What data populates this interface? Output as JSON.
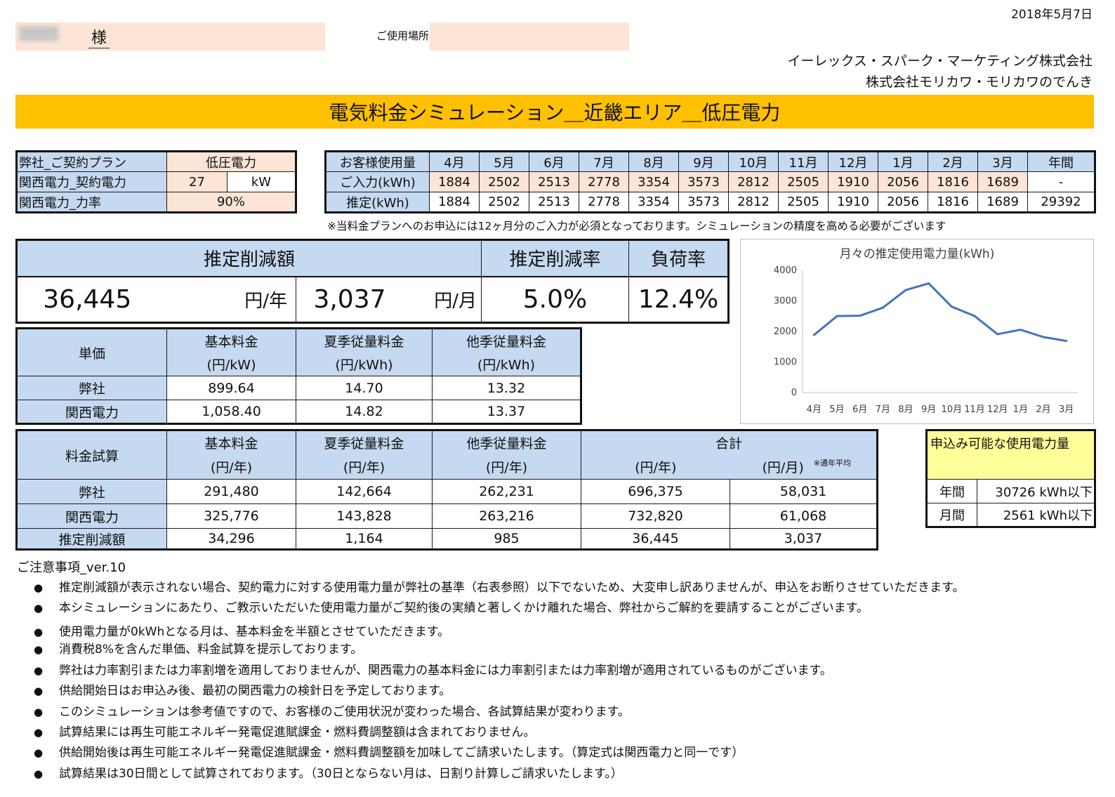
{
  "date": "2018年5月7日",
  "customer": {
    "name_redacted": "████",
    "suffix": "様"
  },
  "usage_place_label": "ご使用場所",
  "company": {
    "line1": "イーレックス・スパーク・マーケティング株式会社",
    "line2": "株式会社モリカワ・モリカワのでんき"
  },
  "title": "電気料金シミュレーション＿近畿エリア＿低圧電力",
  "plan_table": {
    "rows": [
      {
        "label": "弊社_ご契約プラン",
        "value": "低圧電力"
      },
      {
        "label": "関西電力_契約電力",
        "value": "27",
        "unit": "kW"
      },
      {
        "label": "関西電力_力率",
        "value": "90%"
      }
    ]
  },
  "usage_table": {
    "header_label": "お客様使用量",
    "months": [
      "4月",
      "5月",
      "6月",
      "7月",
      "8月",
      "9月",
      "10月",
      "11月",
      "12月",
      "1月",
      "2月",
      "3月"
    ],
    "annual_label": "年間",
    "input_label": "ご入力(kWh)",
    "input_values": [
      "1884",
      "2502",
      "2513",
      "2778",
      "3354",
      "3573",
      "2812",
      "2505",
      "1910",
      "2056",
      "1816",
      "1689"
    ],
    "input_annual": "-",
    "est_label": "推定(kWh)",
    "est_values": [
      "1884",
      "2502",
      "2513",
      "2778",
      "3354",
      "3573",
      "2812",
      "2505",
      "1910",
      "2056",
      "1816",
      "1689"
    ],
    "est_annual": "29392",
    "note": "※当料金プランへのお申込には12ヶ月分のご入力が必須となっております。シミュレーションの精度を高める必要がございます"
  },
  "savings": {
    "label_amount": "推定削減額",
    "label_rate": "推定削減率",
    "label_load": "負荷率",
    "yearly": "36,445",
    "yearly_unit": "円/年",
    "monthly": "3,037",
    "monthly_unit": "円/月",
    "rate": "5.0%",
    "load": "12.4%"
  },
  "unit_price": {
    "corner": "単価",
    "headers": [
      {
        "l1": "基本料金",
        "l2": "(円/kW)"
      },
      {
        "l1": "夏季従量料金",
        "l2": "(円/kWh)"
      },
      {
        "l1": "他季従量料金",
        "l2": "(円/kWh)"
      }
    ],
    "rows": [
      {
        "label": "弊社",
        "values": [
          "899.64",
          "14.70",
          "13.32"
        ]
      },
      {
        "label": "関西電力",
        "values": [
          "1,058.40",
          "14.82",
          "13.37"
        ]
      }
    ]
  },
  "fee_calc": {
    "corner": "料金試算",
    "headers": [
      {
        "l1": "基本料金",
        "l2": "(円/年)"
      },
      {
        "l1": "夏季従量料金",
        "l2": "(円/年)"
      },
      {
        "l1": "他季従量料金",
        "l2": "(円/年)"
      }
    ],
    "total_label": "合計",
    "total_year_unit": "(円/年)",
    "total_month_unit": "(円/月)",
    "avg_note": "※通年平均",
    "rows": [
      {
        "label": "弊社",
        "values": [
          "291,480",
          "142,664",
          "262,231",
          "696,375",
          "58,031"
        ]
      },
      {
        "label": "関西電力",
        "values": [
          "325,776",
          "143,828",
          "263,216",
          "732,820",
          "61,068"
        ]
      },
      {
        "label": "推定削減額",
        "values": [
          "34,296",
          "1,164",
          "985",
          "36,445",
          "3,037"
        ]
      }
    ]
  },
  "limit_table": {
    "title": "申込み可能な使用電力量",
    "rows": [
      {
        "label": "年間",
        "value": "30726 kWh以下"
      },
      {
        "label": "月間",
        "value": "2561 kWh以下"
      }
    ]
  },
  "notes": {
    "heading": "ご注意事項_ver.10",
    "items": [
      "推定削減額が表示されない場合、契約電力に対する使用電力量が弊社の基準（右表参照）以下でないため、大変申し訳ありませんが、申込をお断りさせていただきます。",
      "本シミュレーションにあたり、ご教示いただいた使用電力量がご契約後の実績と著しくかけ離れた場合、弊社からご解約を要請することがございます。",
      "使用電力量が0kWhとなる月は、基本料金を半額とさせていただきます。",
      "消費税8%を含んだ単価、料金試算を提示しております。",
      "弊社は力率割引または力率割増を適用しておりませんが、関西電力の基本料金には力率割引または力率割増が適用されているものがございます。",
      "供給開始日はお申込み後、最初の関西電力の検針日を予定しております。",
      "このシミュレーションは参考値ですので、お客様のご使用状況が変わった場合、各試算結果が変わります。",
      "試算結果には再生可能エネルギー発電促進賦課金・燃料費調整額は含まれておりません。",
      "供給開始後は再生可能エネルギー発電促進賦課金・燃料費調整額を加味してご請求いたします。（算定式は関西電力と同一です）",
      "試算結果は30日間として試算されております。（30日とならない月は、日割り計算しご請求いたします。）"
    ],
    "bullet": "●"
  },
  "chart_data": {
    "type": "line",
    "title": "月々の推定使用電力量(kWh)",
    "categories": [
      "4月",
      "5月",
      "6月",
      "7月",
      "8月",
      "9月",
      "10月",
      "11月",
      "12月",
      "1月",
      "2月",
      "3月"
    ],
    "values": [
      1884,
      2502,
      2513,
      2778,
      3354,
      3573,
      2812,
      2505,
      1910,
      2056,
      1816,
      1689
    ],
    "y_ticks": [
      "0",
      "1000",
      "2000",
      "3000",
      "4000"
    ],
    "ylim": [
      0,
      4000
    ],
    "grid": false,
    "line_color": "#4472c4"
  }
}
